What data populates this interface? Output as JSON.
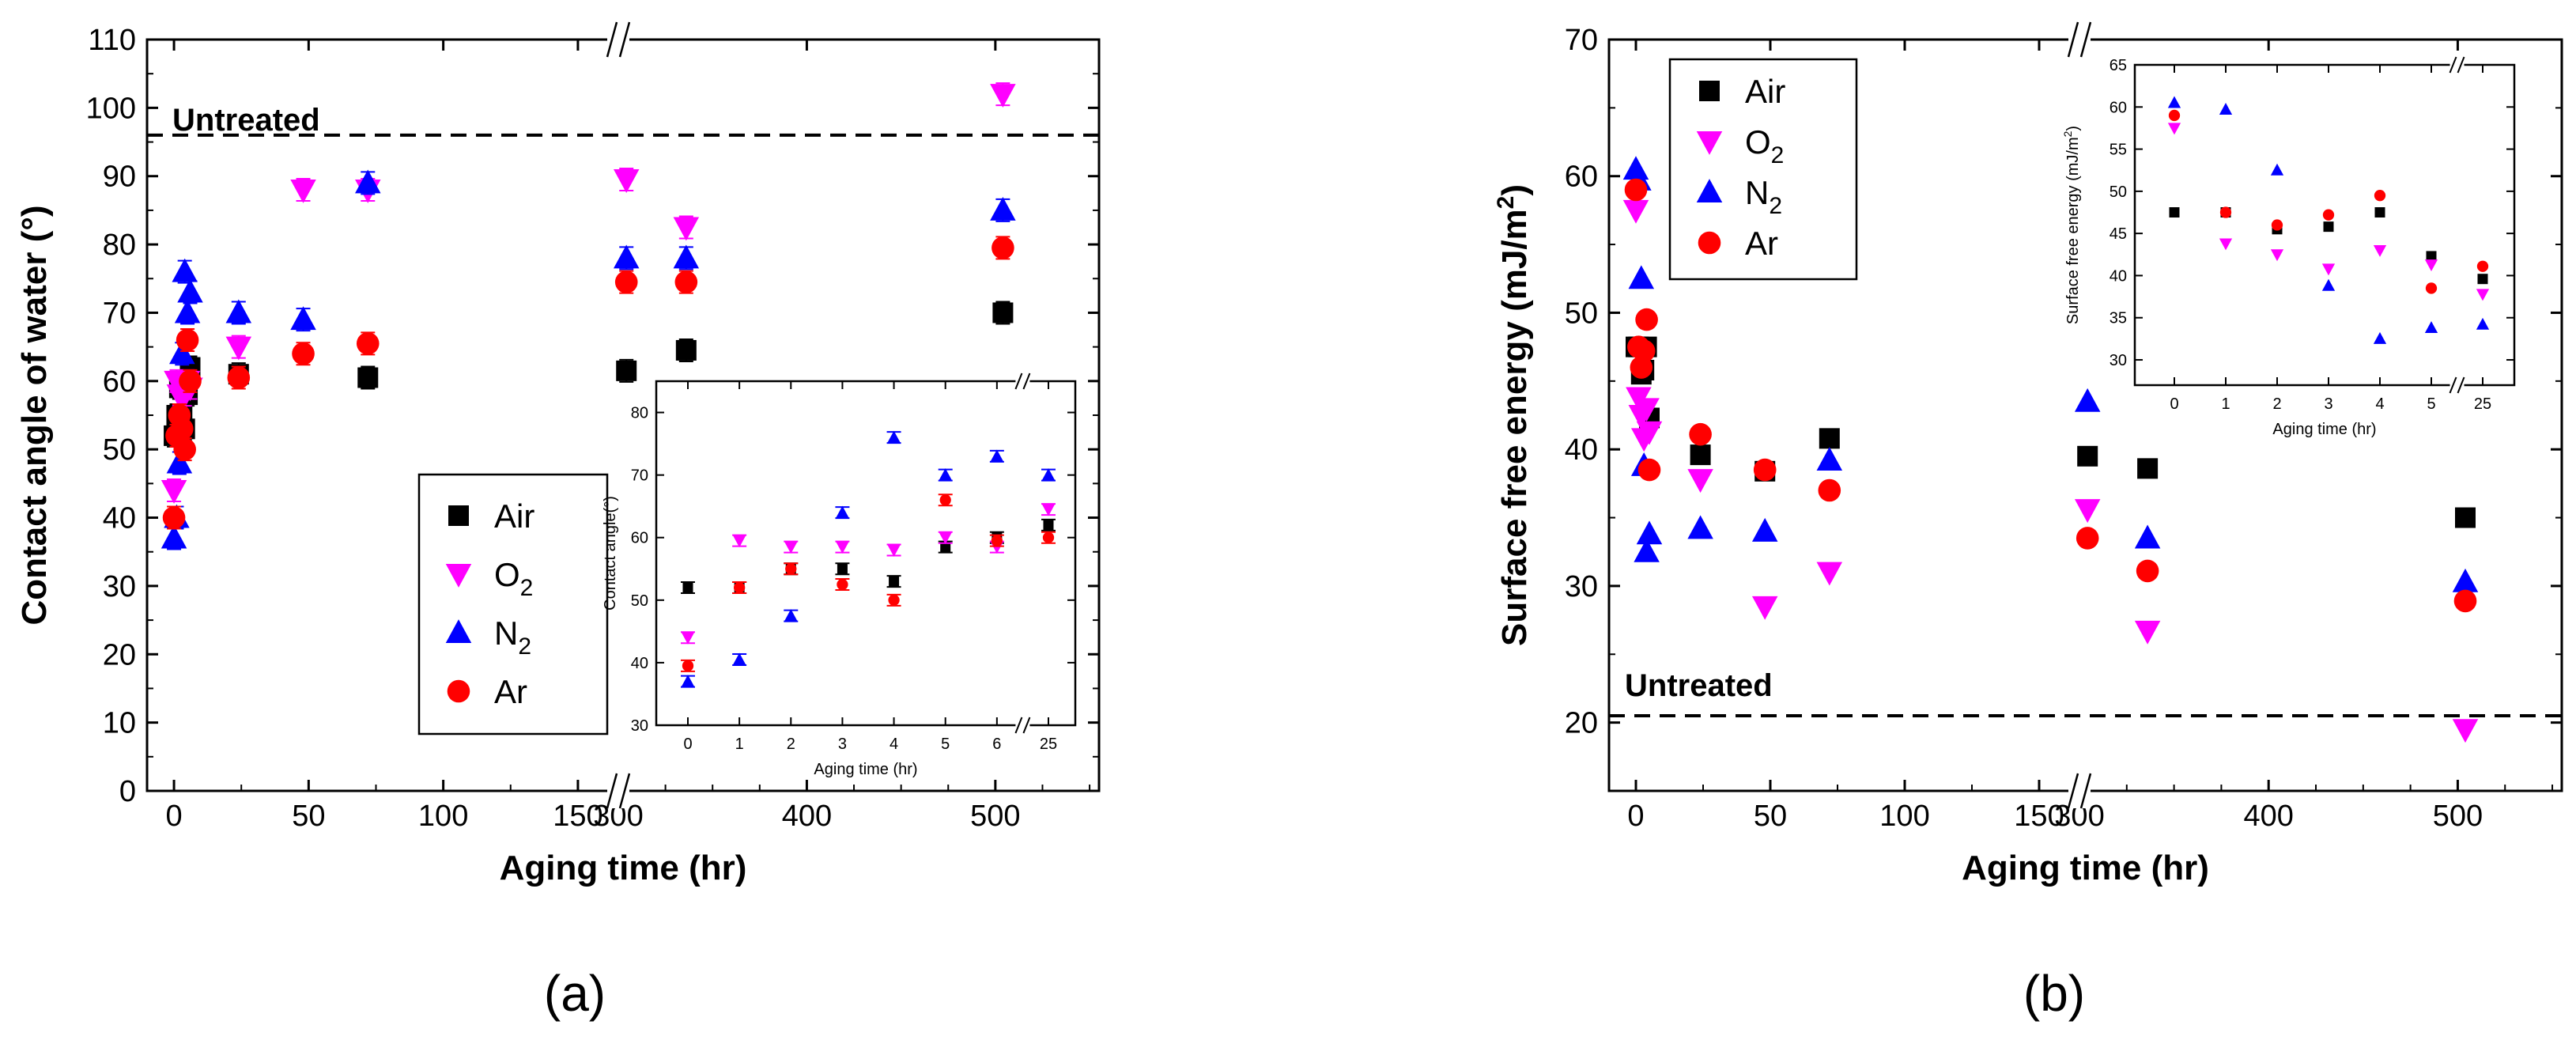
{
  "series_colors": {
    "Air": "#000000",
    "O2": "#ff00ff",
    "N2": "#0000ff",
    "Ar": "#ff0000"
  },
  "chart_data": [
    {
      "type": "scatter",
      "panel_label": "(a)",
      "xlabel": "Aging time (hr)",
      "ylabel": "Contact angle of water (°)",
      "xlim": [
        [
          -10,
          165
        ],
        [
          300,
          555
        ]
      ],
      "xbreak": true,
      "ylim": [
        0,
        110
      ],
      "xticks": [
        0,
        50,
        100,
        150,
        300,
        400,
        500
      ],
      "yticks": [
        0,
        10,
        20,
        30,
        40,
        50,
        60,
        70,
        80,
        90,
        100,
        110
      ],
      "reference_line": {
        "label": "Untreated",
        "y": 96
      },
      "legend": {
        "placement": "lower-middle",
        "entries": [
          {
            "label": "Air",
            "sub": "",
            "marker": "square",
            "color": "#000000"
          },
          {
            "label": "O",
            "sub": "2",
            "marker": "triangle-down",
            "color": "#ff00ff"
          },
          {
            "label": "N",
            "sub": "2",
            "marker": "triangle-up",
            "color": "#0000ff"
          },
          {
            "label": "Ar",
            "sub": "",
            "marker": "circle",
            "color": "#ff0000"
          }
        ]
      },
      "series": [
        {
          "name": "Air",
          "marker": "square",
          "color": "#000000",
          "x": [
            0,
            1,
            2,
            3,
            4,
            5,
            6,
            24,
            72,
            168,
            336,
            504
          ],
          "y": [
            52,
            55,
            59,
            55,
            53,
            58,
            62,
            61,
            60.5,
            61.5,
            64.5,
            70
          ]
        },
        {
          "name": "O2",
          "marker": "triangle-down",
          "color": "#ff00ff",
          "x": [
            0,
            1,
            2,
            3,
            4,
            5,
            6,
            24,
            48,
            72,
            168,
            336,
            504
          ],
          "y": [
            44,
            60,
            58,
            59,
            58,
            60,
            59,
            65,
            88,
            88,
            89.5,
            82.5,
            102
          ]
        },
        {
          "name": "N2",
          "marker": "triangle-up",
          "color": "#0000ff",
          "x": [
            0,
            1,
            2,
            3,
            4,
            5,
            6,
            24,
            48,
            72,
            168,
            336,
            504
          ],
          "y": [
            37,
            40,
            48,
            64,
            76,
            70,
            73,
            70,
            69,
            89,
            78,
            78,
            85
          ]
        },
        {
          "name": "Ar",
          "marker": "circle",
          "color": "#ff0000",
          "x": [
            0,
            1,
            2,
            3,
            4,
            5,
            6,
            24,
            48,
            72,
            168,
            336,
            504
          ],
          "y": [
            40,
            52,
            55,
            53,
            50,
            66,
            60,
            60.5,
            64,
            65.5,
            74.5,
            74.5,
            79.5
          ]
        }
      ],
      "inset": {
        "xlabel": "Aging time (hr)",
        "ylabel": "Contact angle(°)",
        "ylim": [
          30,
          85
        ],
        "yticks": [
          30,
          40,
          50,
          60,
          70,
          80
        ],
        "xticks": [
          "0",
          "1",
          "2",
          "3",
          "4",
          "5",
          "6",
          "25"
        ],
        "xbreak": true,
        "series": [
          {
            "name": "Air",
            "marker": "square",
            "color": "#000000",
            "x": [
              0,
              1,
              2,
              3,
              4,
              5,
              6,
              25
            ],
            "y": [
              52,
              52,
              55,
              55,
              53,
              58.5,
              60,
              62
            ]
          },
          {
            "name": "O2",
            "marker": "triangle-down",
            "color": "#ff00ff",
            "x": [
              0,
              1,
              2,
              3,
              4,
              5,
              6,
              25
            ],
            "y": [
              44,
              59.5,
              58.5,
              58.5,
              58,
              60,
              58.5,
              64.5
            ]
          },
          {
            "name": "N2",
            "marker": "triangle-up",
            "color": "#0000ff",
            "x": [
              0,
              1,
              2,
              3,
              4,
              5,
              6,
              25
            ],
            "y": [
              37,
              40.5,
              47.5,
              64,
              76,
              70,
              73,
              70
            ]
          },
          {
            "name": "Ar",
            "marker": "circle",
            "color": "#ff0000",
            "x": [
              0,
              1,
              2,
              3,
              4,
              5,
              6,
              25
            ],
            "y": [
              39.5,
              52,
              55,
              52.5,
              50,
              66,
              59.5,
              60
            ]
          }
        ]
      }
    },
    {
      "type": "scatter",
      "panel_label": "(b)",
      "xlabel": "Aging time (hr)",
      "ylabel": "Surface free energy (mJ/m",
      "ylabel_sup": "2",
      "ylabel_end": ")",
      "xlim": [
        [
          -10,
          165
        ],
        [
          300,
          555
        ]
      ],
      "xbreak": true,
      "ylim": [
        15,
        70
      ],
      "xticks": [
        0,
        50,
        100,
        150,
        300,
        400,
        500
      ],
      "yticks": [
        20,
        30,
        40,
        50,
        60,
        70
      ],
      "reference_line": {
        "label": "Untreated",
        "y": 20.5
      },
      "legend": {
        "placement": "top-left",
        "entries": [
          {
            "label": "Air",
            "sub": "",
            "marker": "square",
            "color": "#000000"
          },
          {
            "label": "O",
            "sub": "2",
            "marker": "triangle-down",
            "color": "#ff00ff"
          },
          {
            "label": "N",
            "sub": "2",
            "marker": "triangle-up",
            "color": "#0000ff"
          },
          {
            "label": "Ar",
            "sub": "",
            "marker": "circle",
            "color": "#ff0000"
          }
        ]
      },
      "series": [
        {
          "name": "Air",
          "marker": "square",
          "color": "#000000",
          "x": [
            0,
            1,
            2,
            3,
            4,
            5,
            24,
            48,
            72,
            168,
            336,
            504
          ],
          "y": [
            47.5,
            47.5,
            45.5,
            45.8,
            47.5,
            42.3,
            39.6,
            38.4,
            40.8,
            39.5,
            38.6,
            35
          ]
        },
        {
          "name": "O2",
          "marker": "triangle-down",
          "color": "#ff00ff",
          "x": [
            0,
            1,
            2,
            3,
            4,
            5,
            24,
            48,
            72,
            168,
            336,
            504
          ],
          "y": [
            57.5,
            43.8,
            42.5,
            40.8,
            43,
            41.3,
            37.8,
            28.5,
            31,
            35.6,
            26.7,
            19.5
          ]
        },
        {
          "name": "N2",
          "marker": "triangle-up",
          "color": "#0000ff",
          "x": [
            0,
            1,
            2,
            3,
            4,
            5,
            24,
            48,
            72,
            168,
            336,
            504
          ],
          "y": [
            60.5,
            59.7,
            52.5,
            38.8,
            32.5,
            33.8,
            34.2,
            34,
            39.2,
            43.5,
            33.5,
            30.3
          ]
        },
        {
          "name": "Ar",
          "marker": "circle",
          "color": "#ff0000",
          "x": [
            0,
            1,
            2,
            3,
            4,
            5,
            24,
            48,
            72,
            168,
            336,
            504
          ],
          "y": [
            59,
            47.5,
            46,
            47.2,
            49.5,
            38.5,
            41.1,
            38.5,
            37,
            33.5,
            31.1,
            28.9
          ]
        }
      ],
      "inset": {
        "xlabel": "Aging time (hr)",
        "ylabel": "Surface free energy (mJ/m",
        "ylabel_sup": "2",
        "ylabel_end": ")",
        "ylim": [
          27,
          65
        ],
        "yticks": [
          30,
          35,
          40,
          45,
          50,
          55,
          60,
          65
        ],
        "xticks": [
          "0",
          "1",
          "2",
          "3",
          "4",
          "5",
          "25"
        ],
        "xbreak": true,
        "series": [
          {
            "name": "Air",
            "marker": "square",
            "color": "#000000",
            "x": [
              0,
              1,
              2,
              3,
              4,
              5,
              25
            ],
            "y": [
              47.5,
              47.5,
              45.5,
              45.8,
              47.5,
              42.3,
              39.6
            ]
          },
          {
            "name": "O2",
            "marker": "triangle-down",
            "color": "#ff00ff",
            "x": [
              0,
              1,
              2,
              3,
              4,
              5,
              25
            ],
            "y": [
              57.5,
              43.8,
              42.5,
              40.8,
              43,
              41.3,
              37.8
            ]
          },
          {
            "name": "N2",
            "marker": "triangle-up",
            "color": "#0000ff",
            "x": [
              0,
              1,
              2,
              3,
              4,
              5,
              25
            ],
            "y": [
              60.5,
              59.7,
              52.5,
              38.8,
              32.5,
              33.8,
              34.2
            ]
          },
          {
            "name": "Ar",
            "marker": "circle",
            "color": "#ff0000",
            "x": [
              0,
              1,
              2,
              3,
              4,
              5,
              25
            ],
            "y": [
              59,
              47.5,
              46,
              47.2,
              49.5,
              38.5,
              41.1
            ]
          }
        ]
      }
    }
  ]
}
